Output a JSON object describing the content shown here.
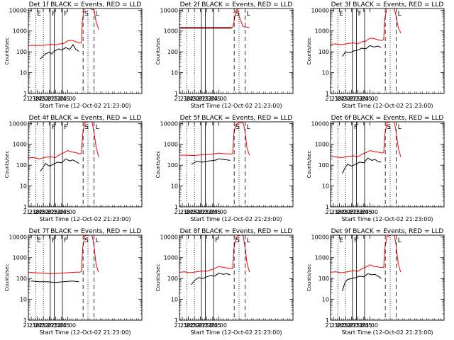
{
  "page": {
    "background": "#ffffff",
    "ink": "#000000",
    "lld_color": "#ff0000",
    "events_color": "#000000"
  },
  "common": {
    "ylabel": "Counts/sec",
    "xlabel": "Start Time (12-Oct-02 21:23:00)",
    "xticks": [
      "21:30",
      "21:45",
      "22:00",
      "22:15",
      "22:30",
      "22:45",
      "23:00"
    ],
    "yticks": [
      "1",
      "10",
      "100",
      "1000",
      "10000"
    ],
    "xlim_minutes_after_2100": [
      83,
      363
    ],
    "ylim": [
      1,
      12000
    ],
    "marker_labels": {
      "E": "E",
      "F": "F",
      "S": "S",
      "L": "L"
    }
  },
  "chart_data": [
    {
      "type": "line",
      "title": "Det 1f BLACK = Events, RED = LLD",
      "series": [
        {
          "name": "LLD",
          "color": "#ff0000",
          "x": [
            83,
            95,
            110,
            125,
            140,
            150,
            160,
            170,
            180,
            190,
            200,
            210,
            214,
            216,
            220,
            222,
            225,
            235,
            245,
            250,
            256
          ],
          "y": [
            200,
            205,
            200,
            210,
            230,
            215,
            240,
            250,
            330,
            360,
            310,
            260,
            280,
            3000,
            9000,
            12000,
            12000,
            12000,
            10000,
            3000,
            1200
          ]
        },
        {
          "name": "Events",
          "color": "#000000",
          "x": [
            112,
            125,
            135,
            140,
            148,
            158,
            165,
            175,
            185,
            193,
            200,
            208
          ],
          "y": [
            45,
            80,
            95,
            80,
            110,
            140,
            120,
            160,
            130,
            220,
            130,
            105
          ]
        }
      ],
      "markers": [
        {
          "label": "E",
          "x": 101,
          "style": "dotted"
        },
        {
          "label": "",
          "x": 120,
          "style": "dotted"
        },
        {
          "label": "F",
          "x": 137,
          "style": "solid"
        },
        {
          "label": "",
          "x": 147,
          "style": "solid"
        },
        {
          "label": "F",
          "x": 167,
          "style": "solid"
        },
        {
          "label": "S",
          "x": 218,
          "style": "dashed"
        },
        {
          "label": "",
          "x": 230,
          "style": "dotted"
        },
        {
          "label": "L",
          "x": 245,
          "style": "dashed"
        }
      ]
    },
    {
      "type": "line",
      "title": "Det 2f BLACK = Events, RED = LLD",
      "series": [
        {
          "name": "LLD",
          "color": "#ff0000",
          "x": [
            83,
            150,
            200,
            210,
            214,
            218,
            222,
            226,
            230,
            240,
            255
          ],
          "y": [
            1500,
            1500,
            1500,
            1500,
            1500,
            3000,
            9000,
            12000,
            5000,
            1600,
            1500
          ]
        },
        {
          "name": "Events",
          "color": "#000000",
          "x": [
            83,
            120,
            150,
            180,
            212
          ],
          "y": [
            1350,
            1350,
            1350,
            1350,
            1350
          ]
        }
      ],
      "markers": [
        {
          "label": "",
          "x": 101,
          "style": "dotted"
        },
        {
          "label": "",
          "x": 120,
          "style": "dotted"
        },
        {
          "label": "",
          "x": 137,
          "style": "solid"
        },
        {
          "label": "",
          "x": 147,
          "style": "solid"
        },
        {
          "label": "",
          "x": 167,
          "style": "solid"
        },
        {
          "label": "S",
          "x": 218,
          "style": "dashed"
        },
        {
          "label": "",
          "x": 230,
          "style": "dotted"
        },
        {
          "label": "L",
          "x": 245,
          "style": "dashed"
        }
      ]
    },
    {
      "type": "line",
      "title": "Det 3f BLACK = Events, RED = LLD",
      "series": [
        {
          "name": "LLD",
          "color": "#ff0000",
          "x": [
            83,
            95,
            110,
            125,
            140,
            150,
            160,
            170,
            180,
            190,
            200,
            210,
            214,
            217,
            222,
            228,
            240,
            244,
            250,
            256
          ],
          "y": [
            230,
            240,
            220,
            250,
            270,
            240,
            300,
            330,
            450,
            430,
            380,
            350,
            400,
            4000,
            12000,
            12000,
            12000,
            6000,
            1500,
            800
          ]
        },
        {
          "name": "Events",
          "color": "#000000",
          "x": [
            112,
            120,
            132,
            140,
            150,
            160,
            170,
            180,
            190,
            200,
            208
          ],
          "y": [
            60,
            100,
            90,
            110,
            120,
            150,
            140,
            200,
            170,
            190,
            160
          ]
        }
      ],
      "markers": [
        {
          "label": "E",
          "x": 101,
          "style": "dotted"
        },
        {
          "label": "",
          "x": 120,
          "style": "dotted"
        },
        {
          "label": "",
          "x": 137,
          "style": "solid"
        },
        {
          "label": "F",
          "x": 147,
          "style": "solid"
        },
        {
          "label": "",
          "x": 167,
          "style": "solid"
        },
        {
          "label": "",
          "x": 218,
          "style": "dashed"
        },
        {
          "label": "",
          "x": 230,
          "style": "dotted"
        },
        {
          "label": "L",
          "x": 245,
          "style": "dashed"
        }
      ]
    },
    {
      "type": "line",
      "title": "Det 4f BLACK = Events, RED = LLD",
      "series": [
        {
          "name": "LLD",
          "color": "#ff0000",
          "x": [
            83,
            95,
            110,
            125,
            140,
            150,
            160,
            170,
            180,
            190,
            200,
            210,
            214,
            217,
            222,
            230,
            240,
            244,
            250,
            256
          ],
          "y": [
            230,
            230,
            200,
            240,
            250,
            230,
            320,
            390,
            500,
            430,
            400,
            350,
            380,
            3000,
            11000,
            12000,
            12000,
            5000,
            800,
            250
          ]
        },
        {
          "name": "Events",
          "color": "#000000",
          "x": [
            112,
            118,
            125,
            135,
            145,
            155,
            165,
            175,
            185,
            192,
            200,
            208
          ],
          "y": [
            50,
            70,
            120,
            90,
            110,
            140,
            130,
            200,
            160,
            180,
            150,
            120
          ]
        }
      ],
      "markers": [
        {
          "label": "",
          "x": 101,
          "style": "dotted"
        },
        {
          "label": "",
          "x": 120,
          "style": "dotted"
        },
        {
          "label": "F",
          "x": 137,
          "style": "solid"
        },
        {
          "label": "",
          "x": 147,
          "style": "solid"
        },
        {
          "label": "F",
          "x": 167,
          "style": "solid"
        },
        {
          "label": "S",
          "x": 218,
          "style": "dashed"
        },
        {
          "label": "",
          "x": 230,
          "style": "dotted"
        },
        {
          "label": "L",
          "x": 245,
          "style": "dashed"
        }
      ]
    },
    {
      "type": "line",
      "title": "Det 5f BLACK = Events, RED = LLD",
      "series": [
        {
          "name": "LLD",
          "color": "#ff0000",
          "x": [
            83,
            100,
            120,
            140,
            160,
            180,
            190,
            200,
            210,
            214,
            217,
            222,
            230,
            240,
            244,
            250,
            256
          ],
          "y": [
            300,
            300,
            290,
            320,
            330,
            380,
            360,
            350,
            340,
            360,
            3000,
            9000,
            11000,
            11000,
            5000,
            600,
            300
          ]
        },
        {
          "name": "Events",
          "color": "#000000",
          "x": [
            112,
            125,
            140,
            155,
            170,
            180,
            190,
            200,
            208
          ],
          "y": [
            110,
            150,
            140,
            160,
            170,
            200,
            190,
            180,
            170
          ]
        }
      ],
      "markers": [
        {
          "label": "",
          "x": 101,
          "style": "dotted"
        },
        {
          "label": "",
          "x": 120,
          "style": "dotted"
        },
        {
          "label": "",
          "x": 137,
          "style": "solid"
        },
        {
          "label": "",
          "x": 147,
          "style": "solid"
        },
        {
          "label": "",
          "x": 167,
          "style": "solid"
        },
        {
          "label": "S",
          "x": 218,
          "style": "dashed"
        },
        {
          "label": "",
          "x": 230,
          "style": "dotted"
        },
        {
          "label": "L",
          "x": 245,
          "style": "dashed"
        }
      ]
    },
    {
      "type": "line",
      "title": "Det 6f BLACK = Events, RED = LLD",
      "series": [
        {
          "name": "LLD",
          "color": "#ff0000",
          "x": [
            83,
            95,
            110,
            125,
            140,
            150,
            160,
            170,
            180,
            190,
            200,
            210,
            214,
            217,
            222,
            230,
            240,
            244,
            250,
            256
          ],
          "y": [
            250,
            250,
            230,
            260,
            280,
            250,
            330,
            400,
            500,
            450,
            420,
            380,
            400,
            3000,
            11000,
            12000,
            12000,
            5000,
            700,
            250
          ]
        },
        {
          "name": "Events",
          "color": "#000000",
          "x": [
            112,
            118,
            125,
            135,
            145,
            155,
            165,
            175,
            185,
            192,
            200,
            208
          ],
          "y": [
            40,
            70,
            110,
            90,
            110,
            140,
            130,
            220,
            170,
            190,
            150,
            140
          ]
        }
      ],
      "markers": [
        {
          "label": "",
          "x": 101,
          "style": "dotted"
        },
        {
          "label": "",
          "x": 120,
          "style": "dotted"
        },
        {
          "label": "F",
          "x": 137,
          "style": "solid"
        },
        {
          "label": "",
          "x": 147,
          "style": "solid"
        },
        {
          "label": "",
          "x": 167,
          "style": "solid"
        },
        {
          "label": "S",
          "x": 218,
          "style": "dashed"
        },
        {
          "label": "",
          "x": 230,
          "style": "dotted"
        },
        {
          "label": "L",
          "x": 245,
          "style": "dashed"
        }
      ]
    },
    {
      "type": "line",
      "title": "Det 7f BLACK = Events, RED = LLD",
      "series": [
        {
          "name": "LLD",
          "color": "#ff0000",
          "x": [
            83,
            100,
            120,
            140,
            160,
            180,
            200,
            210,
            214,
            217,
            222,
            228,
            240,
            244,
            250,
            256
          ],
          "y": [
            200,
            190,
            180,
            170,
            180,
            190,
            200,
            200,
            220,
            3000,
            11000,
            12000,
            12000,
            5000,
            500,
            200
          ]
        },
        {
          "name": "Events",
          "color": "#000000",
          "x": [
            90,
            110,
            130,
            150,
            170,
            190,
            208
          ],
          "y": [
            75,
            70,
            70,
            65,
            70,
            75,
            70
          ]
        }
      ],
      "markers": [
        {
          "label": "E",
          "x": 101,
          "style": "dotted"
        },
        {
          "label": "",
          "x": 120,
          "style": "dotted"
        },
        {
          "label": "F",
          "x": 137,
          "style": "solid"
        },
        {
          "label": "",
          "x": 147,
          "style": "solid"
        },
        {
          "label": "F",
          "x": 167,
          "style": "solid"
        },
        {
          "label": "S",
          "x": 218,
          "style": "dashed"
        },
        {
          "label": "",
          "x": 230,
          "style": "dotted"
        },
        {
          "label": "L",
          "x": 245,
          "style": "dashed"
        }
      ]
    },
    {
      "type": "line",
      "title": "Det 8f BLACK = Events, RED = LLD",
      "series": [
        {
          "name": "LLD",
          "color": "#ff0000",
          "x": [
            83,
            95,
            110,
            125,
            140,
            150,
            160,
            170,
            180,
            190,
            200,
            210,
            214,
            217,
            222,
            230,
            240,
            244,
            250,
            256
          ],
          "y": [
            200,
            210,
            190,
            210,
            230,
            220,
            260,
            300,
            380,
            340,
            320,
            290,
            300,
            2500,
            9000,
            12000,
            12000,
            4000,
            500,
            200
          ]
        },
        {
          "name": "Events",
          "color": "#000000",
          "x": [
            112,
            120,
            130,
            140,
            150,
            160,
            170,
            180,
            190,
            200,
            208
          ],
          "y": [
            50,
            80,
            110,
            100,
            120,
            140,
            130,
            180,
            160,
            170,
            150
          ]
        }
      ],
      "markers": [
        {
          "label": "",
          "x": 101,
          "style": "dotted"
        },
        {
          "label": "",
          "x": 120,
          "style": "dotted"
        },
        {
          "label": "",
          "x": 137,
          "style": "solid"
        },
        {
          "label": "",
          "x": 147,
          "style": "solid"
        },
        {
          "label": "F",
          "x": 167,
          "style": "solid"
        },
        {
          "label": "S",
          "x": 218,
          "style": "dashed"
        },
        {
          "label": "",
          "x": 230,
          "style": "dotted"
        },
        {
          "label": "L",
          "x": 245,
          "style": "dashed"
        }
      ]
    },
    {
      "type": "line",
      "title": "Det 9f BLACK = Events, RED = LLD",
      "series": [
        {
          "name": "LLD",
          "color": "#ff0000",
          "x": [
            83,
            95,
            110,
            125,
            140,
            150,
            160,
            170,
            180,
            190,
            200,
            210,
            214,
            217,
            222,
            230,
            240,
            244,
            250,
            256
          ],
          "y": [
            200,
            210,
            190,
            210,
            240,
            220,
            290,
            360,
            450,
            380,
            360,
            330,
            350,
            2800,
            10000,
            12000,
            12000,
            5000,
            500,
            200
          ]
        },
        {
          "name": "Events",
          "color": "#000000",
          "x": [
            112,
            118,
            125,
            135,
            145,
            155,
            165,
            175,
            185,
            192,
            200,
            208
          ],
          "y": [
            25,
            60,
            90,
            100,
            110,
            130,
            120,
            170,
            150,
            160,
            130,
            100
          ]
        }
      ],
      "markers": [
        {
          "label": "E",
          "x": 101,
          "style": "dotted"
        },
        {
          "label": "",
          "x": 120,
          "style": "dotted"
        },
        {
          "label": "F",
          "x": 137,
          "style": "solid"
        },
        {
          "label": "",
          "x": 147,
          "style": "solid"
        },
        {
          "label": "",
          "x": 167,
          "style": "solid"
        },
        {
          "label": "",
          "x": 218,
          "style": "dashed"
        },
        {
          "label": "",
          "x": 230,
          "style": "dotted"
        },
        {
          "label": "L",
          "x": 245,
          "style": "dashed"
        }
      ]
    }
  ]
}
